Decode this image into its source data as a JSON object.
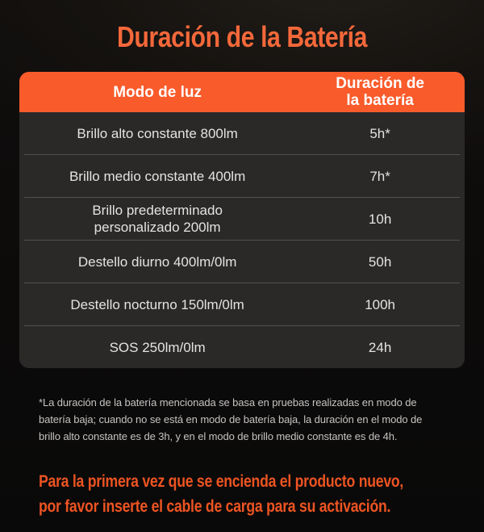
{
  "title": "Duración de la Batería",
  "colors": {
    "background": "#0C0B0A",
    "title_text": "#F4683A",
    "header_bg": "#F95B2B",
    "header_text": "#FFFFFF",
    "table_bg": "#2B2928",
    "row_text": "#E5E3E1",
    "divider": "#524F4D",
    "footnote_text": "#C5C3C1",
    "activation_text": "#ED5422"
  },
  "table": {
    "header": {
      "mode": "Modo de luz",
      "duration": "Duración de\nla batería"
    },
    "rows": [
      {
        "mode": "Brillo alto constante 800lm",
        "duration": "5h*"
      },
      {
        "mode": "Brillo medio constante 400lm",
        "duration": "7h*"
      },
      {
        "mode": "Brillo predeterminado\npersonalizado 200lm",
        "duration": "10h"
      },
      {
        "mode": "Destello diurno 400lm/0lm",
        "duration": "50h"
      },
      {
        "mode": "Destello nocturno 150lm/0lm",
        "duration": "100h"
      },
      {
        "mode": "SOS 250lm/0lm",
        "duration": "24h"
      }
    ]
  },
  "footnote": "*La duración de la batería mencionada se basa en pruebas realizadas en modo de\nbatería baja; cuando no se está en modo de batería baja, la duración en el modo de\nbrillo alto constante es de 3h, y en el modo de brillo medio constante es de 4h.",
  "activation_note": "Para la primera vez que se encienda el producto nuevo,\npor favor inserte el cable de carga para su activación.",
  "chart_data": {
    "type": "table",
    "title": "Duración de la Batería",
    "columns": [
      "Modo de luz",
      "Duración de la batería"
    ],
    "rows": [
      [
        "Brillo alto constante 800lm",
        "5h*"
      ],
      [
        "Brillo medio constante 400lm",
        "7h*"
      ],
      [
        "Brillo predeterminado personalizado 200lm",
        "10h"
      ],
      [
        "Destello diurno 400lm/0lm",
        "50h"
      ],
      [
        "Destello nocturno 150lm/0lm",
        "100h"
      ],
      [
        "SOS 250lm/0lm",
        "24h"
      ]
    ],
    "notes": [
      "*La duración de la batería mencionada se basa en pruebas realizadas en modo de batería baja; cuando no se está en modo de batería baja, la duración en el modo de brillo alto constante es de 3h, y en el modo de brillo medio constante es de 4h.",
      "Para la primera vez que se encienda el producto nuevo, por favor inserte el cable de carga para su activación."
    ]
  }
}
